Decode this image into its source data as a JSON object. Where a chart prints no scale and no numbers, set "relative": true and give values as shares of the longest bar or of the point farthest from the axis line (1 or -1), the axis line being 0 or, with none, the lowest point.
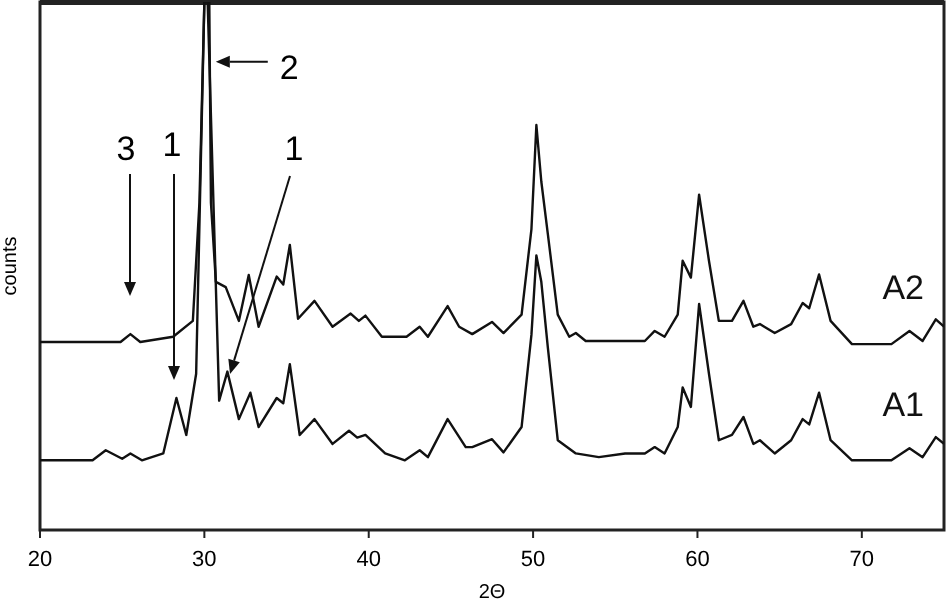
{
  "chart_data": {
    "type": "line",
    "relative": true,
    "xlabel": "2Θ",
    "ylabel": "counts",
    "xlim": [
      20,
      75
    ],
    "xticks": [
      20,
      30,
      40,
      50,
      60,
      70
    ],
    "grid": false,
    "legend": false,
    "marker": "none",
    "line_style": "solid",
    "annotations": [
      "3",
      "1",
      {
        "text": "2",
        "x": 30.33,
        "y": 0.887
      },
      "1"
    ],
    "series": [
      {
        "name": "A2",
        "color": "#111111",
        "x": [
          20,
          24.9,
          25.5,
          26.1,
          28.1,
          29.3,
          29.7,
          30.0,
          30.3,
          30.4,
          30.7,
          31.3,
          32.1,
          32.7,
          33.3,
          34.4,
          34.8,
          35.2,
          35.7,
          36.7,
          37.8,
          38.9,
          39.4,
          39.8,
          40.8,
          42.3,
          43.1,
          43.6,
          44.8,
          45.5,
          46.3,
          47.5,
          48.2,
          49.3,
          49.9,
          50.2,
          50.5,
          50.9,
          51.5,
          52.2,
          52.6,
          53.2,
          56.8,
          57.4,
          58.0,
          58.8,
          59.1,
          59.6,
          60.1,
          60.7,
          61.3,
          62.1,
          62.8,
          63.4,
          63.8,
          64.7,
          65.7,
          66.4,
          66.8,
          67.4,
          68.1,
          69.4,
          71.8,
          72.9,
          73.7,
          74.5,
          75.0
        ],
        "values": [
          0.356,
          0.356,
          0.371,
          0.356,
          0.366,
          0.396,
          0.62,
          1.0,
          1.0,
          0.62,
          0.47,
          0.46,
          0.396,
          0.483,
          0.385,
          0.48,
          0.465,
          0.54,
          0.4,
          0.434,
          0.385,
          0.41,
          0.396,
          0.406,
          0.366,
          0.366,
          0.385,
          0.366,
          0.424,
          0.385,
          0.371,
          0.394,
          0.373,
          0.408,
          0.57,
          0.767,
          0.66,
          0.56,
          0.408,
          0.366,
          0.373,
          0.358,
          0.358,
          0.377,
          0.366,
          0.408,
          0.51,
          0.478,
          0.635,
          0.51,
          0.396,
          0.396,
          0.434,
          0.385,
          0.39,
          0.373,
          0.39,
          0.43,
          0.42,
          0.484,
          0.396,
          0.352,
          0.352,
          0.377,
          0.358,
          0.399,
          0.385
        ]
      },
      {
        "name": "A1",
        "color": "#111111",
        "x": [
          20,
          23.2,
          24.0,
          25.0,
          25.5,
          26.2,
          27.5,
          28.3,
          28.9,
          29.5,
          30.0,
          30.2,
          30.9,
          31.4,
          32.1,
          32.8,
          33.3,
          34.4,
          34.8,
          35.2,
          35.8,
          36.7,
          37.8,
          38.8,
          39.3,
          39.8,
          41.0,
          42.2,
          43.1,
          43.6,
          44.8,
          45.9,
          46.3,
          47.5,
          48.2,
          49.3,
          49.9,
          50.2,
          50.5,
          50.9,
          51.5,
          52.6,
          54.0,
          55.6,
          56.8,
          57.4,
          58.0,
          58.8,
          59.1,
          59.6,
          60.1,
          60.7,
          61.3,
          62.1,
          62.8,
          63.4,
          63.8,
          64.7,
          65.7,
          66.4,
          66.8,
          67.4,
          68.1,
          69.4,
          71.8,
          72.9,
          73.7,
          74.5,
          75.0
        ],
        "values": [
          0.132,
          0.132,
          0.151,
          0.135,
          0.145,
          0.132,
          0.145,
          0.25,
          0.18,
          0.296,
          1.0,
          1.0,
          0.245,
          0.3,
          0.21,
          0.26,
          0.195,
          0.25,
          0.24,
          0.314,
          0.18,
          0.21,
          0.163,
          0.188,
          0.175,
          0.18,
          0.145,
          0.132,
          0.151,
          0.138,
          0.21,
          0.157,
          0.157,
          0.172,
          0.147,
          0.195,
          0.37,
          0.52,
          0.47,
          0.345,
          0.17,
          0.145,
          0.138,
          0.145,
          0.145,
          0.157,
          0.145,
          0.195,
          0.27,
          0.233,
          0.428,
          0.296,
          0.17,
          0.18,
          0.214,
          0.163,
          0.17,
          0.145,
          0.17,
          0.21,
          0.2,
          0.26,
          0.17,
          0.132,
          0.132,
          0.155,
          0.138,
          0.176,
          0.163
        ]
      }
    ]
  }
}
